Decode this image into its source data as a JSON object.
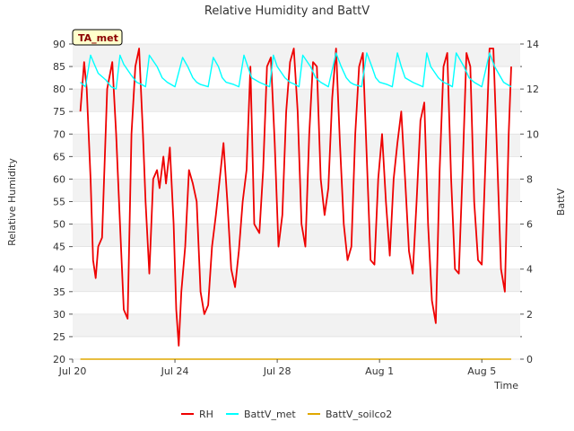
{
  "chart_data": {
    "type": "line",
    "title": "Relative Humidity and BattV",
    "badge": "TA_met",
    "xlabel": "Time",
    "ylabel": "Relative Humidity",
    "y2label": "BattV",
    "ylim": [
      20,
      90
    ],
    "y2lim": [
      0,
      14
    ],
    "xlim": [
      0,
      17.5
    ],
    "x_origin_label": "Jul 20",
    "yticks": [
      "20",
      "25",
      "30",
      "35",
      "40",
      "45",
      "50",
      "55",
      "60",
      "65",
      "70",
      "75",
      "80",
      "85",
      "90"
    ],
    "y2ticks": [
      "0",
      "2",
      "4",
      "6",
      "8",
      "10",
      "12",
      "14"
    ],
    "xticks": [
      {
        "x": 0,
        "label": "Jul 20"
      },
      {
        "x": 4,
        "label": "Jul 24"
      },
      {
        "x": 8,
        "label": "Jul 28"
      },
      {
        "x": 12,
        "label": "Aug 1"
      },
      {
        "x": 16,
        "label": "Aug 5"
      }
    ],
    "grid": "horizontal bands",
    "legend_position": "bottom",
    "series": [
      {
        "name": "RH",
        "axis": "left",
        "color": "#ee0000",
        "x": [
          0.3,
          0.45,
          0.55,
          0.7,
          0.8,
          0.9,
          1.0,
          1.15,
          1.35,
          1.55,
          1.7,
          1.85,
          2.0,
          2.15,
          2.3,
          2.45,
          2.6,
          2.75,
          2.85,
          3.0,
          3.15,
          3.3,
          3.4,
          3.55,
          3.65,
          3.8,
          3.95,
          4.05,
          4.15,
          4.25,
          4.4,
          4.55,
          4.7,
          4.85,
          5.0,
          5.15,
          5.3,
          5.45,
          5.6,
          5.75,
          5.9,
          6.05,
          6.2,
          6.35,
          6.5,
          6.65,
          6.8,
          6.95,
          7.1,
          7.3,
          7.45,
          7.6,
          7.75,
          7.9,
          8.05,
          8.2,
          8.35,
          8.5,
          8.65,
          8.8,
          8.95,
          9.1,
          9.25,
          9.4,
          9.55,
          9.7,
          9.85,
          10.0,
          10.15,
          10.3,
          10.45,
          10.6,
          10.75,
          10.9,
          11.05,
          11.2,
          11.35,
          11.5,
          11.65,
          11.8,
          11.95,
          12.1,
          12.25,
          12.4,
          12.55,
          12.7,
          12.85,
          13.0,
          13.15,
          13.3,
          13.45,
          13.6,
          13.75,
          13.9,
          14.05,
          14.2,
          14.35,
          14.5,
          14.65,
          14.8,
          14.95,
          15.1,
          15.25,
          15.4,
          15.55,
          15.7,
          15.85,
          16.0,
          16.15,
          16.3,
          16.45,
          16.6,
          16.75,
          16.9,
          17.05,
          17.15
        ],
        "values": [
          75,
          86,
          80,
          60,
          42,
          38,
          45,
          47,
          80,
          86,
          70,
          50,
          31,
          29,
          70,
          85,
          89,
          70,
          55,
          39,
          60,
          62,
          58,
          65,
          59,
          67,
          50,
          31,
          23,
          35,
          45,
          62,
          59,
          55,
          35,
          30,
          32,
          45,
          52,
          60,
          68,
          55,
          40,
          36,
          44,
          55,
          62,
          85,
          50,
          48,
          62,
          85,
          87,
          68,
          45,
          52,
          75,
          86,
          89,
          75,
          50,
          45,
          70,
          86,
          85,
          60,
          52,
          58,
          78,
          89,
          68,
          50,
          42,
          45,
          70,
          85,
          88,
          65,
          42,
          41,
          60,
          70,
          55,
          43,
          60,
          68,
          75,
          60,
          44,
          39,
          55,
          73,
          77,
          50,
          33,
          28,
          62,
          85,
          88,
          60,
          40,
          39,
          62,
          88,
          85,
          55,
          42,
          41,
          65,
          89,
          89,
          65,
          40,
          35,
          70,
          85
        ]
      },
      {
        "name": "BattV_met",
        "axis": "right",
        "color": "#00ffff",
        "x": [
          0.3,
          0.5,
          0.7,
          0.85,
          1.0,
          1.3,
          1.5,
          1.7,
          1.85,
          2.0,
          2.3,
          2.5,
          2.7,
          2.85,
          3.0,
          3.3,
          3.5,
          3.7,
          3.85,
          4.0,
          4.3,
          4.5,
          4.7,
          4.85,
          5.0,
          5.3,
          5.5,
          5.7,
          5.85,
          6.0,
          6.3,
          6.5,
          6.7,
          6.85,
          7.0,
          7.3,
          7.5,
          7.7,
          7.85,
          8.0,
          8.3,
          8.5,
          8.7,
          8.85,
          9.0,
          9.3,
          9.5,
          9.7,
          9.85,
          10.0,
          10.3,
          10.5,
          10.7,
          10.85,
          11.0,
          11.3,
          11.5,
          11.7,
          11.85,
          12.0,
          12.3,
          12.5,
          12.7,
          12.85,
          13.0,
          13.3,
          13.5,
          13.7,
          13.85,
          14.0,
          14.3,
          14.5,
          14.7,
          14.85,
          15.0,
          15.3,
          15.5,
          15.7,
          15.85,
          16.0,
          16.3,
          16.5,
          16.7,
          16.85,
          17.0,
          17.15
        ],
        "values": [
          12.3,
          12.1,
          13.5,
          13.1,
          12.7,
          12.4,
          12.1,
          12.0,
          13.5,
          13.1,
          12.6,
          12.3,
          12.2,
          12.1,
          13.5,
          13.0,
          12.5,
          12.3,
          12.2,
          12.1,
          13.4,
          13.0,
          12.5,
          12.3,
          12.2,
          12.1,
          13.4,
          13.0,
          12.5,
          12.3,
          12.2,
          12.1,
          13.5,
          13.0,
          12.5,
          12.3,
          12.2,
          12.1,
          13.5,
          13.0,
          12.5,
          12.3,
          12.2,
          12.1,
          13.5,
          13.0,
          12.5,
          12.3,
          12.2,
          12.1,
          13.6,
          13.0,
          12.5,
          12.3,
          12.2,
          12.1,
          13.6,
          13.0,
          12.5,
          12.3,
          12.2,
          12.1,
          13.6,
          13.0,
          12.5,
          12.3,
          12.2,
          12.1,
          13.6,
          13.0,
          12.5,
          12.3,
          12.2,
          12.1,
          13.6,
          13.0,
          12.5,
          12.3,
          12.2,
          12.1,
          13.6,
          13.0,
          12.6,
          12.3,
          12.2,
          12.1
        ]
      },
      {
        "name": "BattV_soilco2",
        "axis": "right",
        "color": "#e0a800",
        "x": [
          0.3,
          17.15
        ],
        "values": [
          0,
          0
        ]
      }
    ]
  }
}
